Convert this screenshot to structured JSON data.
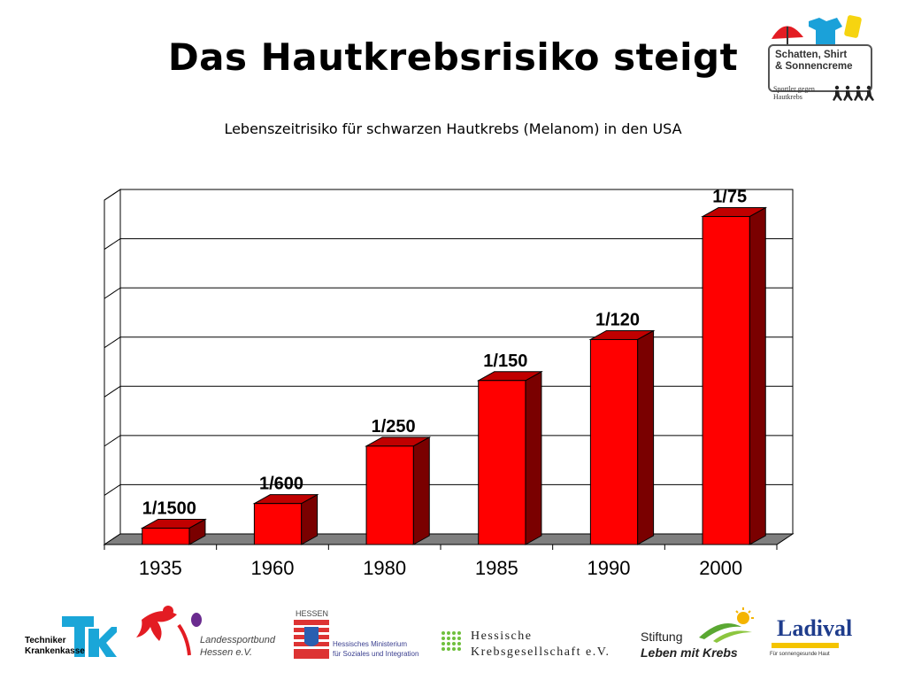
{
  "title": "Das Hautkrebsrisiko steigt",
  "subtitle": "Lebenszeitrisiko für schwarzen Hautkrebs (Melanom) in den USA",
  "chart_data": {
    "type": "bar",
    "style": "3d",
    "categories": [
      "1935",
      "1960",
      "1980",
      "1985",
      "1990",
      "2000"
    ],
    "values": [
      0.000667,
      0.001667,
      0.004,
      0.006667,
      0.008333,
      0.013333
    ],
    "data_labels": [
      "1/1500",
      "1/600",
      "1/250",
      "1/150",
      "1/120",
      "1/75"
    ],
    "ylim": [
      0,
      0.014
    ],
    "grid": true,
    "bar_color": "#ff0000",
    "bar_side_color": "#7a0000",
    "floor_color": "#7f7f7f"
  },
  "campaign_logo": {
    "line1": "Schatten, Shirt",
    "line2": "& Sonnencreme",
    "sub1": "Sportler gegen",
    "sub2": "Hautkrebs"
  },
  "sponsors": {
    "tk": {
      "line1": "Techniker",
      "line2": "Krankenkasse"
    },
    "lsb": {
      "line1": "Landessportbund",
      "line2": "Hessen e.V."
    },
    "hessen": {
      "label": "HESSEN",
      "line1": "Hessisches Ministerium",
      "line2": "für Soziales und Integration"
    },
    "hkg": {
      "line1": "Hessische",
      "line2": "Krebsgesellschaft e.V."
    },
    "stiftung": {
      "line1": "Stiftung",
      "line2": "Leben mit Krebs"
    },
    "ladival": {
      "name": "Ladival",
      "sub": "Für sonnengesunde Haut"
    }
  }
}
